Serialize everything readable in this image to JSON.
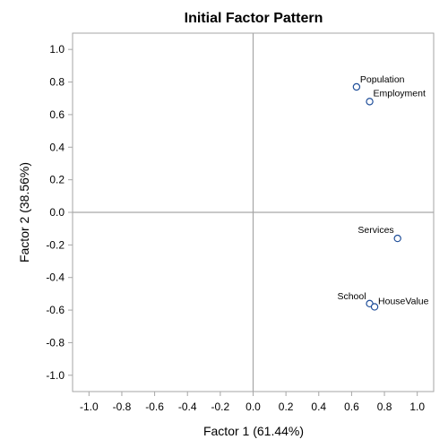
{
  "chart_data": {
    "type": "scatter",
    "title": "Initial Factor Pattern",
    "xlabel": "Factor 1 (61.44%)",
    "ylabel": "Factor 2 (38.56%)",
    "xlim": [
      -1.1,
      1.1
    ],
    "ylim": [
      -1.1,
      1.1
    ],
    "xticks": [
      -1.0,
      -0.8,
      -0.6,
      -0.4,
      -0.2,
      0.0,
      0.2,
      0.4,
      0.6,
      0.8,
      1.0
    ],
    "yticks": [
      -1.0,
      -0.8,
      -0.6,
      -0.4,
      -0.2,
      0.0,
      0.2,
      0.4,
      0.6,
      0.8,
      1.0
    ],
    "reference_lines": {
      "x": 0,
      "y": 0
    },
    "grid": false,
    "marker_color": "#1f4e99",
    "points": [
      {
        "label": "Population",
        "x": 0.63,
        "y": 0.77
      },
      {
        "label": "Employment",
        "x": 0.71,
        "y": 0.68
      },
      {
        "label": "Services",
        "x": 0.88,
        "y": -0.16
      },
      {
        "label": "School",
        "x": 0.71,
        "y": -0.56
      },
      {
        "label": "HouseValue",
        "x": 0.74,
        "y": -0.58
      }
    ]
  }
}
